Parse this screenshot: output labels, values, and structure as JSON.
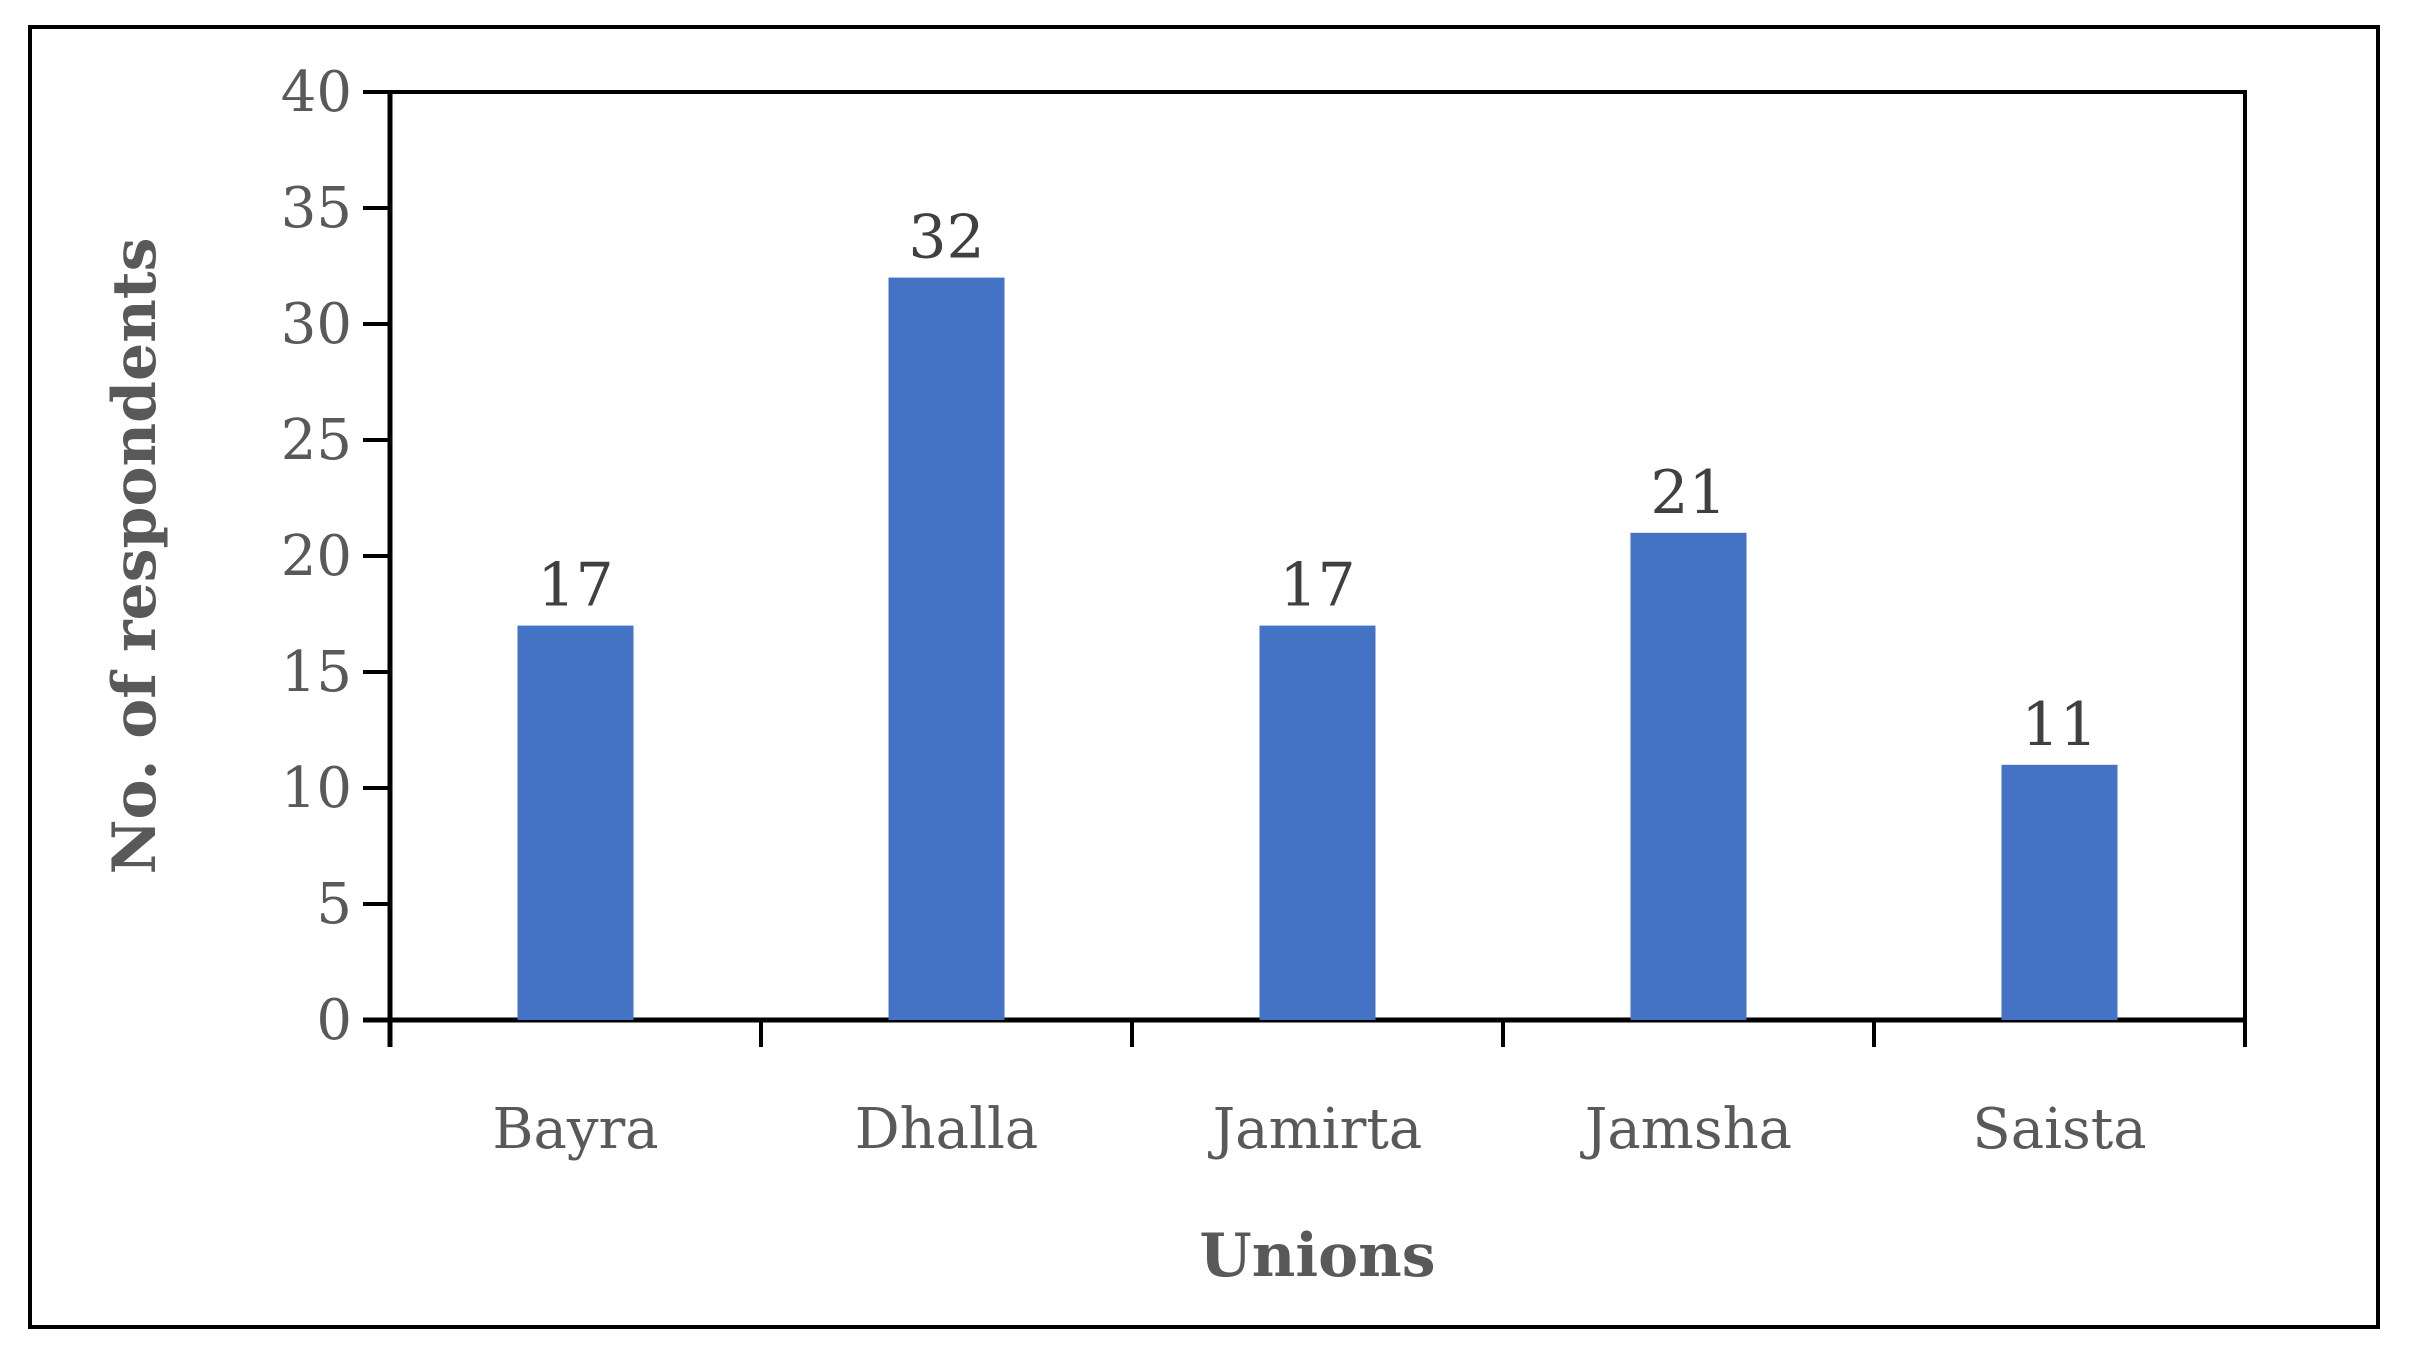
{
  "chart_data": {
    "type": "bar",
    "title": "",
    "xlabel": "Unions",
    "ylabel": "No. of respondents",
    "categories": [
      "Bayra",
      "Dhalla",
      "Jamirta",
      "Jamsha",
      "Saista"
    ],
    "values": [
      17,
      32,
      17,
      21,
      11
    ],
    "ylim": [
      0,
      40
    ],
    "yticks": [
      0,
      5,
      10,
      15,
      20,
      25,
      30,
      35,
      40
    ],
    "grid": false,
    "legend": "none",
    "bar_color": "#4472C4",
    "data_labels": true
  }
}
